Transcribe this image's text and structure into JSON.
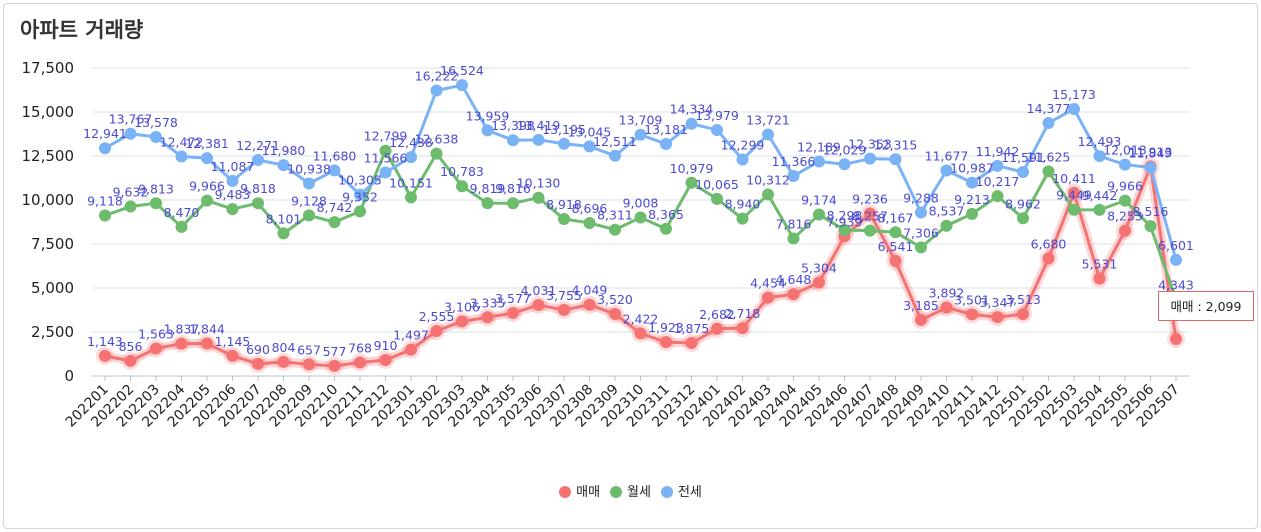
{
  "title": "아파트 거래량",
  "tooltip": "매매 : 2,099",
  "chart_data": {
    "type": "line",
    "title": "아파트 거래량",
    "categories": [
      "202201",
      "202202",
      "202203",
      "202204",
      "202205",
      "202206",
      "202207",
      "202208",
      "202209",
      "202210",
      "202211",
      "202212",
      "202301",
      "202302",
      "202303",
      "202304",
      "202305",
      "202306",
      "202307",
      "202308",
      "202309",
      "202310",
      "202311",
      "202312",
      "202401",
      "202402",
      "202403",
      "202404",
      "202405",
      "202406",
      "202407",
      "202408",
      "202409",
      "202410",
      "202411",
      "202412",
      "202501",
      "202502",
      "202503",
      "202504",
      "202505",
      "202506",
      "202507"
    ],
    "y_ticks": [
      "0",
      "2,500",
      "5,000",
      "7,500",
      "10,000",
      "12,500",
      "15,000",
      "17,500"
    ],
    "ylim": [
      0,
      17500
    ],
    "grid": true,
    "legend_position": "bottom",
    "series": [
      {
        "name": "매매",
        "color": "#f47272",
        "values": [
          1143,
          856,
          1563,
          1837,
          1844,
          1145,
          690,
          804,
          657,
          577,
          768,
          910,
          1497,
          2555,
          3106,
          3335,
          3577,
          4031,
          3755,
          4049,
          3520,
          2422,
          1923,
          1875,
          2682,
          2718,
          4454,
          4648,
          5304,
          7939,
          9236,
          6541,
          3185,
          3892,
          3501,
          3347,
          3513,
          6680,
          10411,
          5531,
          8253,
          11913,
          2099
        ],
        "labels": [
          "1,143",
          "856",
          "1,563",
          "1,837",
          "1,844",
          "1,145",
          "690",
          "804",
          "657",
          "577",
          "768",
          "910",
          "1,497",
          "2,555",
          "3,106",
          "3,335",
          "3,577",
          "4,031",
          "3,755",
          "4,049",
          "3,520",
          "2,422",
          "1,923",
          "1,875",
          "2,682",
          "2,718",
          "4,454",
          "4,648",
          "5,304",
          "7,939",
          "9,236",
          "6,541",
          "3,185",
          "3,892",
          "3,501",
          "3,347",
          "3,513",
          "6,680",
          "10,411",
          "5,531",
          "8,253",
          "11,913",
          ""
        ]
      },
      {
        "name": "월세",
        "color": "#6dbb6d",
        "values": [
          9118,
          9632,
          9813,
          8470,
          9966,
          9483,
          9818,
          8101,
          9128,
          8742,
          9352,
          12799,
          10151,
          12638,
          10783,
          9819,
          9816,
          10130,
          8918,
          8696,
          8311,
          9008,
          8365,
          10979,
          10065,
          8940,
          10312,
          7816,
          9174,
          8298,
          8257,
          8167,
          7306,
          8537,
          9213,
          10217,
          8962,
          11625,
          9449,
          9442,
          9966,
          8516,
          4343
        ],
        "labels": [
          "9,118",
          "9,632",
          "9,813",
          "8,470",
          "9,966",
          "9,483",
          "9,818",
          "8,101",
          "9,128",
          "8,742",
          "9,352",
          "12,799",
          "10,151",
          "12,638",
          "10,783",
          "9,819",
          "9,816",
          "10,130",
          "8,918",
          "8,696",
          "8,311",
          "9,008",
          "8,365",
          "10,979",
          "10,065",
          "8,940",
          "10,312",
          "7,816",
          "9,174",
          "8,298",
          "8,257",
          "8,167",
          "7,306",
          "8,537",
          "9,213",
          "10,217",
          "8,962",
          "11,625",
          "9,449",
          "9,442",
          "9,966",
          "8,516",
          "4,343"
        ]
      },
      {
        "name": "전세",
        "color": "#7ab3f5",
        "values": [
          12941,
          13767,
          13578,
          12472,
          12381,
          11087,
          12271,
          11980,
          10938,
          11680,
          10305,
          11566,
          12438,
          16222,
          16524,
          13959,
          13398,
          13419,
          13195,
          13045,
          12511,
          13709,
          13181,
          14334,
          13979,
          12299,
          13721,
          11366,
          12189,
          12029,
          12353,
          12315,
          9288,
          11677,
          10987,
          11942,
          11591,
          14377,
          15173,
          12493,
          12013,
          11849,
          6601
        ],
        "labels": [
          "12,941",
          "13,767",
          "13,578",
          "12,472",
          "12,381",
          "11,087",
          "12,271",
          "11,980",
          "10,938",
          "11,680",
          "10,305",
          "11,566",
          "12,438",
          "16,222",
          "16,524",
          "13,959",
          "13,398",
          "13,419",
          "13,195",
          "13,045",
          "12,511",
          "13,709",
          "13,181",
          "14,334",
          "13,979",
          "12,299",
          "13,721",
          "11,366",
          "12,189",
          "12,029",
          "12,353",
          "12,315",
          "9,288",
          "11,677",
          "10,987",
          "11,942",
          "11,591",
          "14,377",
          "15,173",
          "12,493",
          "12,013",
          "11,849",
          "6,601"
        ]
      }
    ]
  }
}
